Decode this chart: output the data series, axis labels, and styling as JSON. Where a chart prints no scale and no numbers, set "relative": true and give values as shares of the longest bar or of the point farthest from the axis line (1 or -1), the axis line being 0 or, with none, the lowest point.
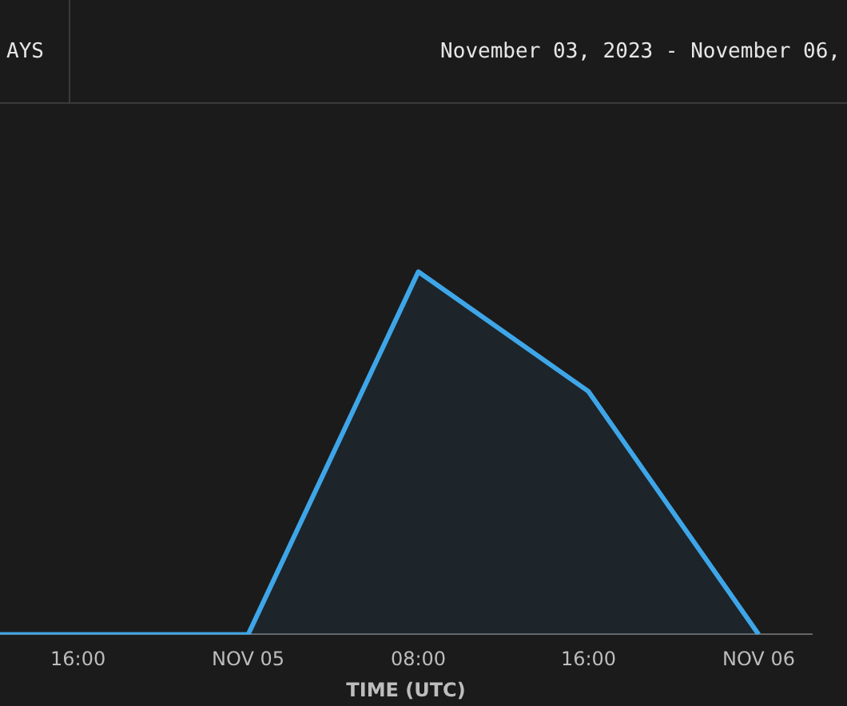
{
  "chart_data": {
    "type": "area",
    "relative": true,
    "xlabel": "TIME (UTC)",
    "annotations": [
      "AYS",
      "November 03, 2023 - November 06,"
    ],
    "x": [
      "2023-11-04T12:20",
      "2023-11-04T16:00",
      "2023-11-05T00:00",
      "2023-11-05T08:00",
      "2023-11-05T16:00",
      "2023-11-06T00:00"
    ],
    "series": [
      {
        "color": "#3ea6e8",
        "values": [
          0,
          0,
          0,
          1,
          0.67,
          0
        ]
      }
    ],
    "xlim": [
      "2023-11-04T12:20",
      "2023-11-06T02:30"
    ],
    "xticks": [
      {
        "value": "2023-11-04T16:00",
        "label": "16:00"
      },
      {
        "value": "2023-11-05T00:00",
        "label": "NOV 05"
      },
      {
        "value": "2023-11-05T08:00",
        "label": "08:00"
      },
      {
        "value": "2023-11-05T16:00",
        "label": "16:00"
      },
      {
        "value": "2023-11-06T00:00",
        "label": "NOV 06"
      }
    ],
    "grid": false,
    "legend": false
  }
}
